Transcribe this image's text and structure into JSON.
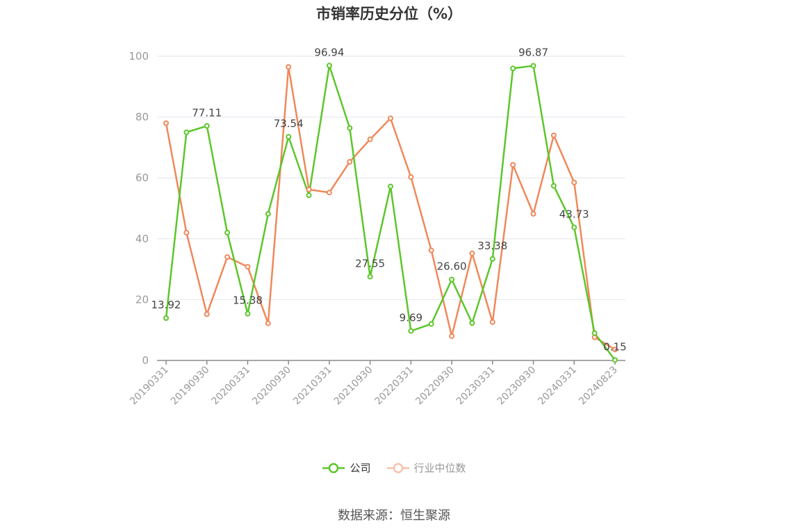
{
  "chart_data": {
    "type": "line",
    "title": "市销率历史分位（%）",
    "xlabel": "",
    "ylabel": "",
    "ylim": [
      0,
      100
    ],
    "yticks": [
      0,
      20,
      40,
      60,
      80,
      100
    ],
    "x": [
      "20190331",
      "20190630",
      "20190930",
      "20191231",
      "20200331",
      "20200630",
      "20200930",
      "20201231",
      "20210331",
      "20210630",
      "20210930",
      "20211231",
      "20220331",
      "20220630",
      "20220930",
      "20221231",
      "20230331",
      "20230630",
      "20230930",
      "20231231",
      "20240331",
      "20240630",
      "20240823"
    ],
    "xtick_labels": [
      "20190331",
      "20190930",
      "20200331",
      "20200930",
      "20210331",
      "20210930",
      "20220331",
      "20220930",
      "20230331",
      "20230930",
      "20240331",
      "20240823"
    ],
    "grid": true,
    "legend_position": "bottom",
    "series": [
      {
        "name": "公司",
        "color": "#5cc62a",
        "values": [
          13.92,
          75.0,
          77.11,
          42.0,
          15.38,
          48.2,
          73.54,
          54.3,
          96.94,
          76.4,
          27.55,
          57.2,
          9.69,
          12.0,
          26.6,
          12.3,
          33.38,
          96.0,
          96.87,
          57.4,
          43.73,
          9.0,
          0.15
        ],
        "labels": {
          "0": "13.92",
          "2": "77.11",
          "4": "15.38",
          "6": "73.54",
          "8": "96.94",
          "10": "27.55",
          "12": "9.69",
          "14": "26.60",
          "16": "33.38",
          "18": "96.87",
          "20": "43.73",
          "22": "0.15"
        }
      },
      {
        "name": "行业中位数",
        "color": "#f0885a",
        "values": [
          78.0,
          42.0,
          15.2,
          34.0,
          30.8,
          12.2,
          96.5,
          56.2,
          55.2,
          65.3,
          72.7,
          79.6,
          60.3,
          36.2,
          8.0,
          35.2,
          12.6,
          64.3,
          48.2,
          74.0,
          58.5,
          7.6,
          3.6
        ]
      }
    ]
  },
  "footer": {
    "source": "数据来源：恒生聚源"
  }
}
